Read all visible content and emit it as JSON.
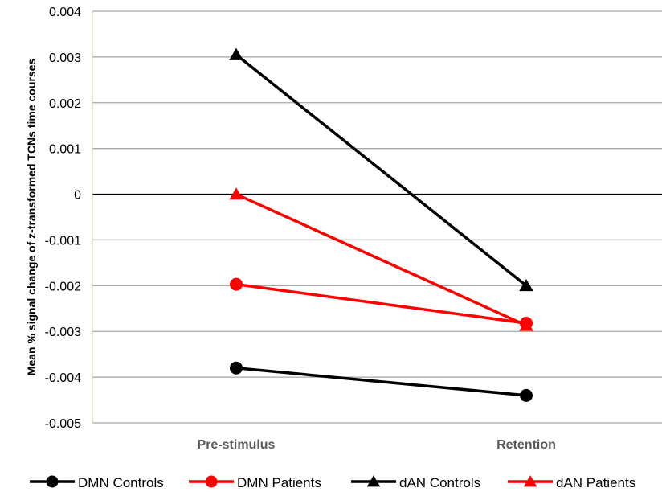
{
  "chart_data": {
    "type": "line",
    "title": "",
    "xlabel": "",
    "ylabel": "Mean % signal change of z-transformed TCNs time courses",
    "categories": [
      "Pre-stimulus",
      "Retention"
    ],
    "ylim": [
      -0.005,
      0.004
    ],
    "yticks": [
      0.004,
      0.003,
      0.002,
      0.001,
      0,
      -0.001,
      -0.002,
      -0.003,
      -0.004,
      -0.005
    ],
    "ytick_labels": [
      "0.004",
      "0.003",
      "0.002",
      "0.001",
      "0",
      "-0.001",
      "-0.002",
      "-0.003",
      "-0.004",
      "-0.005"
    ],
    "grid": true,
    "legend_position": "bottom",
    "series": [
      {
        "name": "DMN Controls",
        "values": [
          -0.0038,
          -0.0044
        ],
        "color": "#000000",
        "marker": "circle"
      },
      {
        "name": "DMN Patients",
        "values": [
          -0.00197,
          -0.00282
        ],
        "color": "#ff0000",
        "marker": "circle"
      },
      {
        "name": "dAN Controls",
        "values": [
          0.00305,
          -0.002
        ],
        "color": "#000000",
        "marker": "triangle"
      },
      {
        "name": "dAN Patients",
        "values": [
          0.0,
          -0.00287
        ],
        "color": "#ff0000",
        "marker": "triangle"
      }
    ]
  }
}
